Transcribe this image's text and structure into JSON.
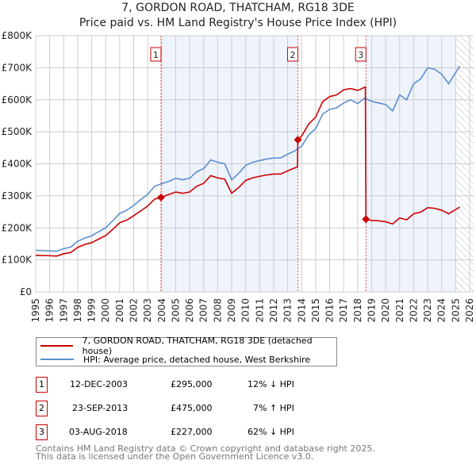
{
  "chart_data": {
    "type": "line",
    "title": "7, GORDON ROAD, THATCHAM, RG18 3DE",
    "subtitle": "Price paid vs. HM Land Registry's House Price Index (HPI)",
    "xlim": [
      1995,
      2026
    ],
    "ylim": [
      0,
      800
    ],
    "y_ticks": [
      {
        "v": 0,
        "l": "£0"
      },
      {
        "v": 100,
        "l": "£100K"
      },
      {
        "v": 200,
        "l": "£200K"
      },
      {
        "v": 300,
        "l": "£300K"
      },
      {
        "v": 400,
        "l": "£400K"
      },
      {
        "v": 500,
        "l": "£500K"
      },
      {
        "v": 600,
        "l": "£600K"
      },
      {
        "v": 700,
        "l": "£700K"
      },
      {
        "v": 800,
        "l": "£800K"
      }
    ],
    "x_ticks": [
      "1995",
      "1996",
      "1997",
      "1998",
      "1999",
      "2000",
      "2001",
      "2002",
      "2003",
      "2004",
      "2005",
      "2006",
      "2007",
      "2008",
      "2009",
      "2010",
      "2011",
      "2012",
      "2013",
      "2014",
      "2015",
      "2016",
      "2017",
      "2018",
      "2019",
      "2020",
      "2021",
      "2022",
      "2023",
      "2024",
      "2025",
      "2026"
    ],
    "shaded_ranges": [
      [
        2003.95,
        2013.73
      ],
      [
        2018.59,
        2025.0
      ]
    ],
    "hatched_from": 2025.0,
    "series": [
      {
        "name": "7, GORDON ROAD, THATCHAM, RG18 3DE (detached house)",
        "color": "#cc0000",
        "x": [
          1995,
          1996,
          1996.5,
          1997,
          1997.5,
          1998,
          1998.5,
          1999,
          1999.5,
          2000,
          2000.5,
          2001,
          2001.5,
          2002,
          2002.5,
          2003,
          2003.5,
          2003.95,
          2004.5,
          2005,
          2005.5,
          2006,
          2006.5,
          2007,
          2007.5,
          2008,
          2008.5,
          2009,
          2009.5,
          2010,
          2010.5,
          2011,
          2011.5,
          2012,
          2012.5,
          2013,
          2013.5,
          2013.7,
          2013.73,
          2014,
          2014.5,
          2015,
          2015.5,
          2016,
          2016.5,
          2017,
          2017.5,
          2018,
          2018.55,
          2018.59,
          2019,
          2019.5,
          2020,
          2020.5,
          2021,
          2021.5,
          2022,
          2022.5,
          2023,
          2023.5,
          2024,
          2024.5,
          2025,
          2025.3
        ],
        "y": [
          114,
          113,
          112,
          119,
          123,
          139,
          148,
          154,
          165,
          176,
          195,
          216,
          224,
          238,
          253,
          268,
          290,
          295,
          304,
          312,
          308,
          312,
          330,
          339,
          363,
          356,
          352,
          308,
          326,
          348,
          356,
          361,
          365,
          368,
          368,
          378,
          387,
          390,
          475,
          487,
          524,
          546,
          594,
          610,
          615,
          631,
          635,
          629,
          640,
          227,
          223,
          222,
          219,
          212,
          231,
          225,
          244,
          249,
          263,
          261,
          255,
          244,
          257,
          265
        ]
      },
      {
        "name": "HPI: Average price, detached house, West Berkshire",
        "color": "#5b8fd0",
        "x": [
          1995,
          1996,
          1996.5,
          1997,
          1997.5,
          1998,
          1998.5,
          1999,
          1999.5,
          2000,
          2000.5,
          2001,
          2001.5,
          2002,
          2002.5,
          2003,
          2003.5,
          2004,
          2004.5,
          2005,
          2005.5,
          2006,
          2006.5,
          2007,
          2007.5,
          2008,
          2008.5,
          2009,
          2009.5,
          2010,
          2010.5,
          2011,
          2011.5,
          2012,
          2012.5,
          2013,
          2013.5,
          2014,
          2014.5,
          2015,
          2015.5,
          2016,
          2016.5,
          2017,
          2017.5,
          2018,
          2018.5,
          2019,
          2019.5,
          2020,
          2020.5,
          2021,
          2021.5,
          2022,
          2022.5,
          2023,
          2023.5,
          2024,
          2024.5,
          2025,
          2025.3
        ],
        "y": [
          130,
          128,
          127,
          135,
          140,
          158,
          168,
          175,
          188,
          200,
          222,
          245,
          255,
          270,
          288,
          305,
          330,
          338,
          345,
          355,
          350,
          355,
          375,
          385,
          412,
          405,
          400,
          350,
          370,
          395,
          405,
          410,
          415,
          418,
          418,
          430,
          440,
          455,
          490,
          510,
          555,
          570,
          575,
          590,
          600,
          588,
          605,
          595,
          590,
          585,
          565,
          615,
          600,
          650,
          665,
          700,
          695,
          680,
          650,
          685,
          705
        ]
      }
    ],
    "sales": [
      {
        "n": "1",
        "x": 2003.95,
        "y": 295,
        "date": "12-DEC-2003",
        "price": "£295,000",
        "delta": "12% ↓ HPI"
      },
      {
        "n": "2",
        "x": 2013.73,
        "y": 475,
        "date": "23-SEP-2013",
        "price": "£475,000",
        "delta": "7% ↑ HPI"
      },
      {
        "n": "3",
        "x": 2018.59,
        "y": 227,
        "date": "03-AUG-2018",
        "price": "£227,000",
        "delta": "62% ↓ HPI"
      }
    ]
  },
  "footer": {
    "line1": "Contains HM Land Registry data © Crown copyright and database right 2025.",
    "line2": "This data is licensed under the Open Government Licence v3.0."
  }
}
